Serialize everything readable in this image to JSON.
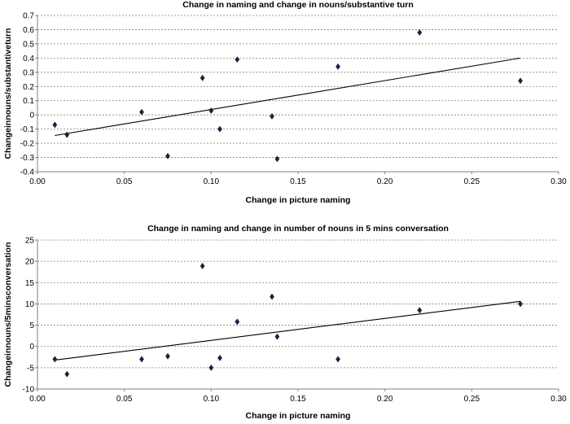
{
  "chart_data": [
    {
      "type": "scatter",
      "title": "Change in naming and change in nouns/substantive turn",
      "xlabel": "Change in picture naming",
      "ylabel": "Changeinnouns/substantiveturn",
      "xlim": [
        0.0,
        0.3
      ],
      "ylim": [
        -0.4,
        0.7
      ],
      "xticks": [
        0.0,
        0.05,
        0.1,
        0.15,
        0.2,
        0.25,
        0.3
      ],
      "xtick_labels": [
        "0.00",
        "0.05",
        "0.10",
        "0.15",
        "0.20",
        "0.25",
        "0.30"
      ],
      "yticks": [
        -0.4,
        -0.3,
        -0.2,
        -0.1,
        0,
        0.1,
        0.2,
        0.3,
        0.4,
        0.5,
        0.6,
        0.7
      ],
      "ytick_labels": [
        "-0.4",
        "-0.3",
        "-0.2",
        "-0.1",
        "0",
        "0.1",
        "0.2",
        "0.3",
        "0.4",
        "0.5",
        "0.6",
        "0.7"
      ],
      "grid": "horizontal",
      "x": [
        0.01,
        0.017,
        0.06,
        0.075,
        0.095,
        0.1,
        0.105,
        0.115,
        0.135,
        0.138,
        0.173,
        0.22,
        0.278
      ],
      "y": [
        -0.07,
        -0.14,
        0.02,
        -0.29,
        0.26,
        0.03,
        -0.1,
        0.39,
        -0.01,
        -0.31,
        0.34,
        0.58,
        0.24
      ],
      "trendline": {
        "x": [
          0.01,
          0.278
        ],
        "y": [
          -0.145,
          0.4
        ]
      }
    },
    {
      "type": "scatter",
      "title": "Change in naming and change in number of nouns in 5 mins conversation",
      "xlabel": "Change in picture naming",
      "ylabel": "Changeinnouns/5minsconversation",
      "xlim": [
        0.0,
        0.3
      ],
      "ylim": [
        -10,
        25
      ],
      "xticks": [
        0.0,
        0.05,
        0.1,
        0.15,
        0.2,
        0.25,
        0.3
      ],
      "xtick_labels": [
        "0.00",
        "0.05",
        "0.10",
        "0.15",
        "0.20",
        "0.25",
        "0.30"
      ],
      "yticks": [
        -10,
        -5,
        0,
        5,
        10,
        15,
        20,
        25
      ],
      "ytick_labels": [
        "-10",
        "-5",
        "0",
        "5",
        "10",
        "15",
        "20",
        "25"
      ],
      "grid": "horizontal",
      "x": [
        0.01,
        0.017,
        0.06,
        0.075,
        0.095,
        0.1,
        0.105,
        0.115,
        0.135,
        0.138,
        0.173,
        0.22,
        0.278
      ],
      "y": [
        -3,
        -6.5,
        -3,
        -2.3,
        18.9,
        -5,
        -2.7,
        5.8,
        11.7,
        2.3,
        -3,
        8.5,
        10
      ],
      "trendline": {
        "x": [
          0.01,
          0.278
        ],
        "y": [
          -3.2,
          10.6
        ]
      }
    }
  ]
}
